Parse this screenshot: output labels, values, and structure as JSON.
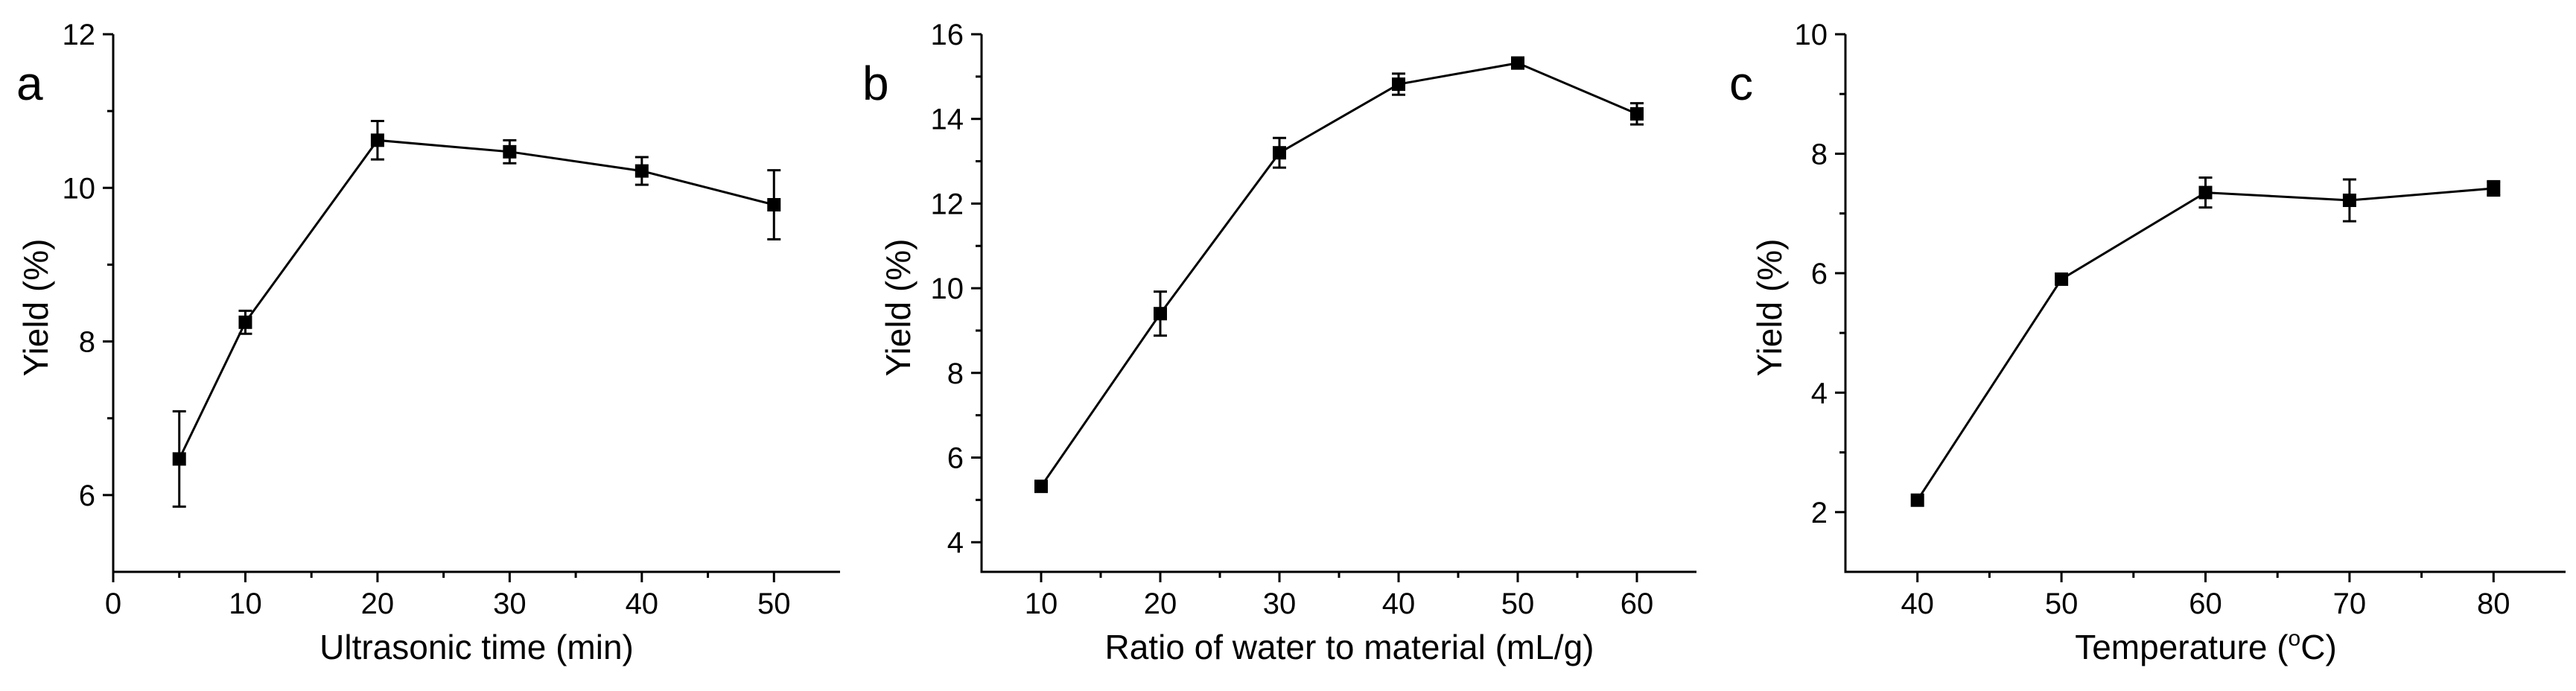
{
  "chart_data": [
    {
      "type": "line",
      "panel_label": "a",
      "xlabel": "Ultrasonic time (min)",
      "ylabel": "Yield (%)",
      "xlim": [
        0,
        55
      ],
      "ylim": [
        5,
        12
      ],
      "xticks": [
        0,
        10,
        20,
        30,
        40,
        50
      ],
      "yticks": [
        6,
        8,
        10,
        12
      ],
      "x": [
        5,
        10,
        20,
        30,
        40,
        50
      ],
      "y": [
        6.47,
        8.25,
        10.62,
        10.47,
        10.22,
        9.78
      ],
      "error": [
        0.62,
        0.15,
        0.25,
        0.15,
        0.18,
        0.45
      ],
      "marker": "square"
    },
    {
      "type": "line",
      "panel_label": "b",
      "xlabel": "Ratio of water to material (mL/g)",
      "ylabel": "Yield (%)",
      "xlim": [
        5,
        65
      ],
      "ylim": [
        3.3,
        16
      ],
      "xticks": [
        10,
        20,
        30,
        40,
        50,
        60
      ],
      "yticks": [
        4,
        6,
        8,
        10,
        12,
        14,
        16
      ],
      "x": [
        10,
        20,
        30,
        40,
        50,
        60
      ],
      "y": [
        5.32,
        9.4,
        13.2,
        14.82,
        15.32,
        14.12
      ],
      "error": [
        0.0,
        0.52,
        0.35,
        0.25,
        0.1,
        0.25
      ],
      "marker": "square"
    },
    {
      "type": "line",
      "panel_label": "c",
      "xlabel": "Temperature (",
      "xlabel_sup": "o",
      "xlabel_tail": "C)",
      "ylabel": "Yield (%)",
      "xlim": [
        35,
        85
      ],
      "ylim": [
        1,
        10
      ],
      "xticks": [
        40,
        50,
        60,
        70,
        80
      ],
      "yticks": [
        2,
        4,
        6,
        8,
        10
      ],
      "x": [
        40,
        50,
        60,
        70,
        80
      ],
      "y": [
        2.2,
        5.9,
        7.35,
        7.22,
        7.42
      ],
      "error": [
        0.0,
        0.0,
        0.25,
        0.35,
        0.12
      ],
      "marker": "square"
    }
  ]
}
